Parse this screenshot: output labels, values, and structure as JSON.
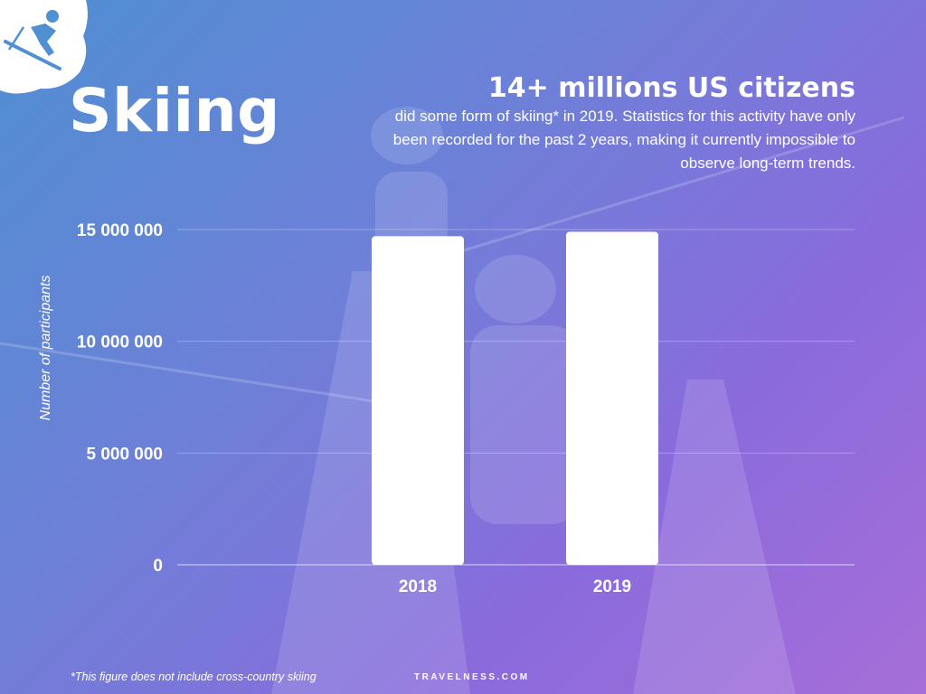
{
  "header": {
    "title": "Skiing",
    "headline": "14+ millions US citizens",
    "subtext": "did some form of skiing* in 2019. Statistics for this activity have only been recorded for the past 2 years, making it currently impossible to observe long-term trends."
  },
  "footer": {
    "footnote": "*This figure does not include cross-country skiing",
    "brand": "TRAVELNESS.COM"
  },
  "icons": {
    "logo": "skier-icon"
  },
  "colors": {
    "bar": "#ffffff",
    "text": "#ffffff",
    "gradient_start": "#4f8fd2",
    "gradient_end": "#a66ed8"
  },
  "chart_data": {
    "type": "bar",
    "categories": [
      "2018",
      "2019"
    ],
    "values": [
      14700000,
      14900000
    ],
    "title": "",
    "xlabel": "",
    "ylabel": "Number of participants",
    "ylim": [
      0,
      15000000
    ],
    "yticks": [
      0,
      5000000,
      10000000,
      15000000
    ],
    "ytick_labels": [
      "0",
      "5 000 000",
      "10 000 000",
      "15 000 000"
    ],
    "grid": true,
    "legend": "none"
  }
}
